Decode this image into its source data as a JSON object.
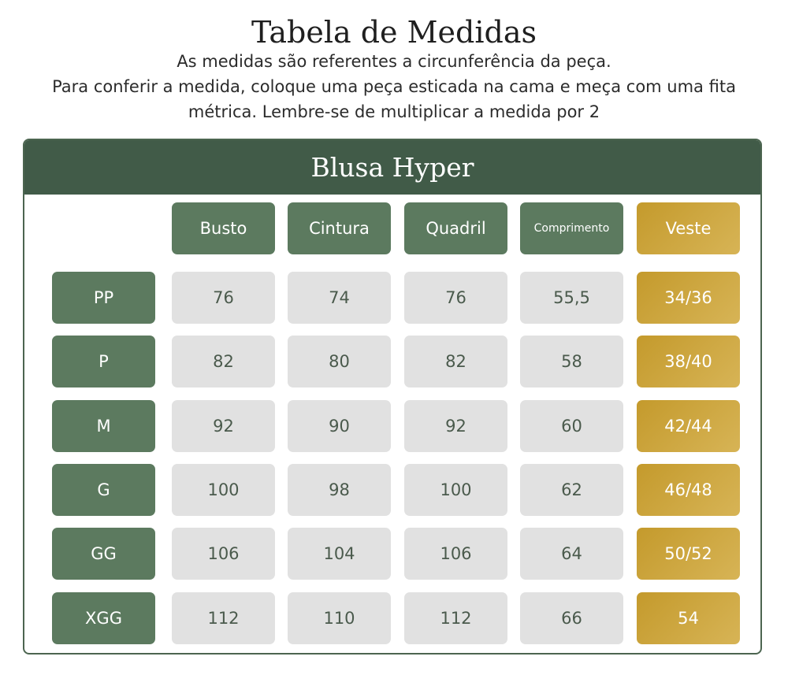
{
  "title": "Tabela de Medidas",
  "subtitle_lines": [
    "As medidas são referentes a circunferência da peça.",
    "Para conferir a medida, coloque uma peça esticada na cama e meça com uma fita",
    "métrica. Lembre-se de multiplicar a medida por 2"
  ],
  "table": {
    "name": "Blusa Hyper",
    "columns": [
      "Busto",
      "Cintura",
      "Quadril",
      "Comprimento",
      "Veste"
    ],
    "rows": [
      {
        "size": "PP",
        "values": [
          "76",
          "74",
          "76",
          "55,5",
          "34/36"
        ]
      },
      {
        "size": "P",
        "values": [
          "82",
          "80",
          "82",
          "58",
          "38/40"
        ]
      },
      {
        "size": "M",
        "values": [
          "92",
          "90",
          "92",
          "60",
          "42/44"
        ]
      },
      {
        "size": "G",
        "values": [
          "100",
          "98",
          "100",
          "62",
          "46/48"
        ]
      },
      {
        "size": "GG",
        "values": [
          "106",
          "104",
          "106",
          "64",
          "50/52"
        ]
      },
      {
        "size": "XGG",
        "values": [
          "112",
          "110",
          "112",
          "66",
          "54"
        ]
      }
    ]
  },
  "colors": {
    "header_green": "#415b48",
    "cell_green": "#5c7a5f",
    "value_gray": "#e1e1e1",
    "gold": "#c9a43f"
  }
}
